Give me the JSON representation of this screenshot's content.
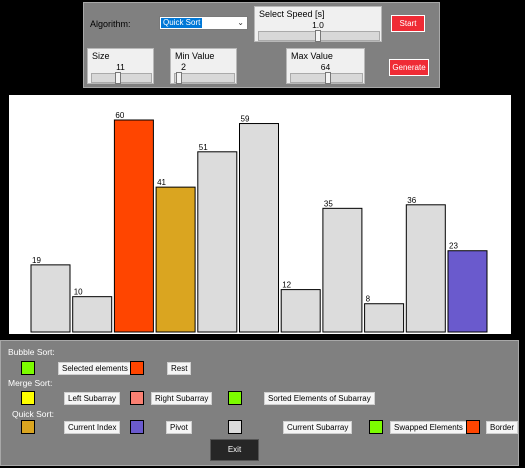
{
  "controls": {
    "algorithm_label": "Algorithm:",
    "algorithm_value": "Quick Sort",
    "speed_label": "Select Speed [s]",
    "speed_value": "1.0",
    "start_label": "Start",
    "size_label": "Size",
    "size_value": "11",
    "min_label": "Min Value",
    "min_value": "2",
    "max_label": "Max Value",
    "max_value": "64",
    "generate_label": "Generate"
  },
  "chart_data": {
    "type": "bar",
    "values": [
      19,
      10,
      60,
      41,
      51,
      59,
      12,
      35,
      8,
      36,
      23
    ],
    "colors": [
      "#dcdcdc",
      "#dcdcdc",
      "#ff4500",
      "#daa520",
      "#dcdcdc",
      "#dcdcdc",
      "#dcdcdc",
      "#dcdcdc",
      "#dcdcdc",
      "#dcdcdc",
      "#6a5acd"
    ],
    "ylim": [
      0,
      64
    ]
  },
  "legend": {
    "bubble_title": "Bubble Sort:",
    "merge_title": "Merge Sort:",
    "quick_title": "Quick Sort:",
    "selected_elements": "Selected elements",
    "rest": "Rest",
    "left_subarray": "Left Subarray",
    "right_subarray": "Right Subarray",
    "sorted_elements": "Sorted Elements of Subarray",
    "current_index": "Current Index",
    "pivot": "Pivot",
    "current_subarray": "Current Subarray",
    "swapped_elements": "Swapped Elements",
    "border": "Border",
    "exit_label": "Exit",
    "colors": {
      "selected": "#7cfc00",
      "rest": "#ff4500",
      "left": "#ffff00",
      "right": "#fa8072",
      "sorted": "#7cfc00",
      "current_index": "#daa520",
      "pivot": "#6a5acd",
      "current_subarray": "#dcdcdc",
      "swapped": "#7cfc00",
      "border": "#ff4500"
    }
  }
}
